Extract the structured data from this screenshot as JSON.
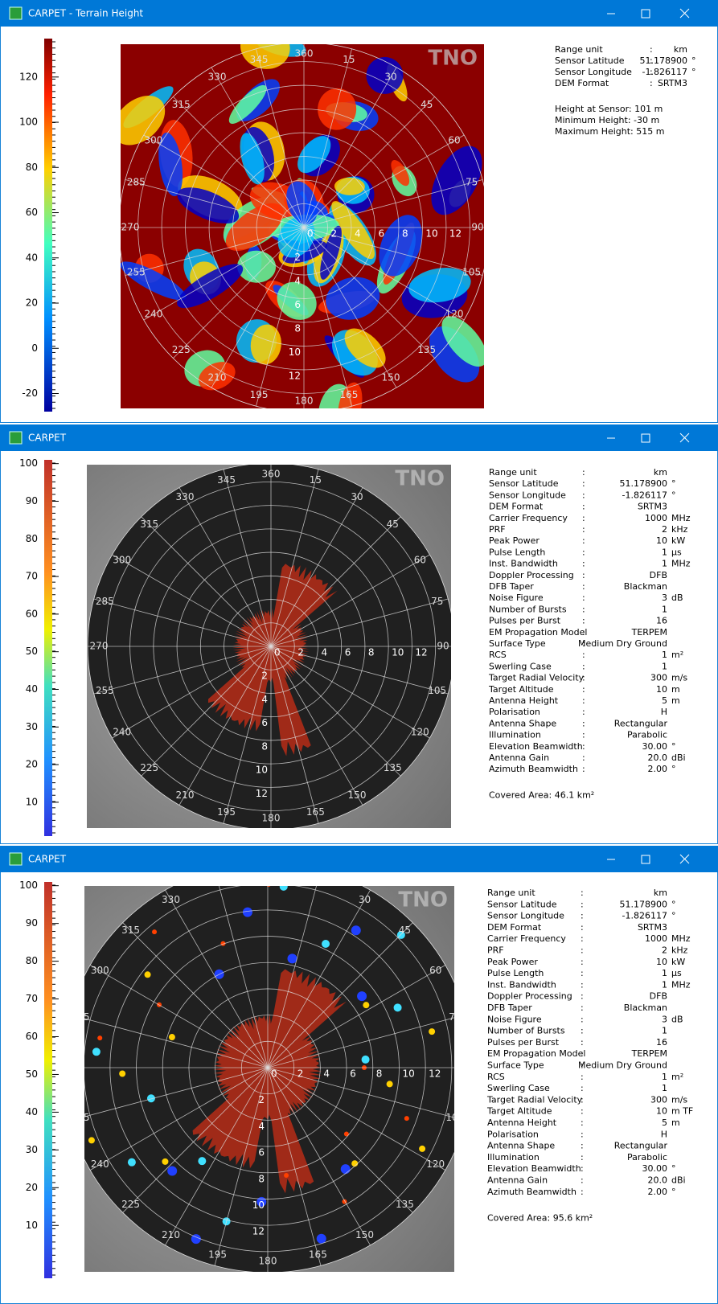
{
  "windows": [
    {
      "title": "CARPET - Terrain Height",
      "colorbar": {
        "lim": [
          -28,
          137
        ],
        "ticks": [
          120,
          100,
          80,
          60,
          40,
          20,
          0,
          -20
        ]
      },
      "info": [
        {
          "label": "Range unit",
          "value": "km"
        },
        {
          "label": "Sensor Latitude",
          "value": "51.178900",
          "unit": "°"
        },
        {
          "label": "Sensor Longitude",
          "value": "-1.826117",
          "unit": "°"
        },
        {
          "label": "DEM Format",
          "value": "SRTM3"
        }
      ],
      "notes": [
        "Height at Sensor: 101 m",
        "Minimum Height: -30 m",
        "Maximum Height: 515 m"
      ]
    },
    {
      "title": "CARPET",
      "colorbar": {
        "lim": [
          1,
          101
        ],
        "ticks": [
          100,
          90,
          80,
          70,
          60,
          50,
          40,
          30,
          20,
          10
        ]
      },
      "info": [
        {
          "label": "Range unit",
          "value": "km"
        },
        {
          "label": "Sensor Latitude",
          "value": "51.178900",
          "unit": "°"
        },
        {
          "label": "Sensor Longitude",
          "value": "-1.826117",
          "unit": "°"
        },
        {
          "label": "DEM Format",
          "value": "SRTM3"
        },
        {
          "label": "Carrier Frequency",
          "value": "1000",
          "unit": "MHz"
        },
        {
          "label": "PRF",
          "value": "2",
          "unit": "kHz"
        },
        {
          "label": "Peak Power",
          "value": "10",
          "unit": "kW"
        },
        {
          "label": "Pulse Length",
          "value": "1",
          "unit": "µs"
        },
        {
          "label": "Inst. Bandwidth",
          "value": "1",
          "unit": "MHz"
        },
        {
          "label": "Doppler Processing",
          "value": "DFB"
        },
        {
          "label": "DFB Taper",
          "value": "Blackman"
        },
        {
          "label": "Noise Figure",
          "value": "3",
          "unit": "dB"
        },
        {
          "label": "Number of Bursts",
          "value": "1"
        },
        {
          "label": "Pulses per Burst",
          "value": "16"
        },
        {
          "label": "EM Propagation Model",
          "value": "TERPEM"
        },
        {
          "label": "Surface Type",
          "value": "Medium Dry Ground"
        },
        {
          "label": "RCS",
          "value": "1",
          "unit": "m²"
        },
        {
          "label": "Swerling Case",
          "value": "1"
        },
        {
          "label": "Target Radial Velocity",
          "value": "300",
          "unit": "m/s"
        },
        {
          "label": "Target Altitude",
          "value": "10",
          "unit": "m"
        },
        {
          "label": "Antenna Height",
          "value": "5",
          "unit": "m"
        },
        {
          "label": "Polarisation",
          "value": "H"
        },
        {
          "label": "Antenna Shape",
          "value": "Rectangular"
        },
        {
          "label": "Illumination",
          "value": "Parabolic"
        },
        {
          "label": "Elevation Beamwidth",
          "value": "30.00",
          "unit": "°"
        },
        {
          "label": "Antenna Gain",
          "value": "20.0",
          "unit": "dBi"
        },
        {
          "label": "Azimuth Beamwidth",
          "value": "2.00",
          "unit": "°"
        }
      ],
      "notes": [
        "Covered Area: 46.1 km²"
      ]
    },
    {
      "title": "CARPET",
      "colorbar": {
        "lim": [
          -4,
          101
        ],
        "ticks": [
          100,
          90,
          80,
          70,
          60,
          50,
          40,
          30,
          20,
          10
        ]
      },
      "info": [
        {
          "label": "Range unit",
          "value": "km"
        },
        {
          "label": "Sensor Latitude",
          "value": "51.178900",
          "unit": "°"
        },
        {
          "label": "Sensor Longitude",
          "value": "-1.826117",
          "unit": "°"
        },
        {
          "label": "DEM Format",
          "value": "SRTM3"
        },
        {
          "label": "Carrier Frequency",
          "value": "1000",
          "unit": "MHz"
        },
        {
          "label": "PRF",
          "value": "2",
          "unit": "kHz"
        },
        {
          "label": "Peak Power",
          "value": "10",
          "unit": "kW"
        },
        {
          "label": "Pulse Length",
          "value": "1",
          "unit": "µs"
        },
        {
          "label": "Inst. Bandwidth",
          "value": "1",
          "unit": "MHz"
        },
        {
          "label": "Doppler Processing",
          "value": "DFB"
        },
        {
          "label": "DFB Taper",
          "value": "Blackman"
        },
        {
          "label": "Noise Figure",
          "value": "3",
          "unit": "dB"
        },
        {
          "label": "Number of Bursts",
          "value": "1"
        },
        {
          "label": "Pulses per Burst",
          "value": "16"
        },
        {
          "label": "EM Propagation Model",
          "value": "TERPEM"
        },
        {
          "label": "Surface Type",
          "value": "Medium Dry Ground"
        },
        {
          "label": "RCS",
          "value": "1",
          "unit": "m²"
        },
        {
          "label": "Swerling Case",
          "value": "1"
        },
        {
          "label": "Target Radial Velocity",
          "value": "300",
          "unit": "m/s"
        },
        {
          "label": "Target Altitude",
          "value": "10",
          "unit": "m TF"
        },
        {
          "label": "Antenna Height",
          "value": "5",
          "unit": "m"
        },
        {
          "label": "Polarisation",
          "value": "H"
        },
        {
          "label": "Antenna Shape",
          "value": "Rectangular"
        },
        {
          "label": "Illumination",
          "value": "Parabolic"
        },
        {
          "label": "Elevation Beamwidth",
          "value": "30.00",
          "unit": "°"
        },
        {
          "label": "Antenna Gain",
          "value": "20.0",
          "unit": "dBi"
        },
        {
          "label": "Azimuth Beamwidth",
          "value": "2.00",
          "unit": "°"
        }
      ],
      "notes": [
        "Covered Area: 95.6 km²"
      ]
    }
  ],
  "azimuth_labels": [
    360,
    15,
    30,
    45,
    60,
    75,
    90,
    105,
    120,
    135,
    150,
    165,
    180,
    195,
    210,
    225,
    240,
    255,
    270,
    285,
    300,
    315,
    330,
    345
  ],
  "range_labels": [
    0,
    2,
    4,
    6,
    8,
    10,
    12
  ],
  "watermark": "TNO"
}
